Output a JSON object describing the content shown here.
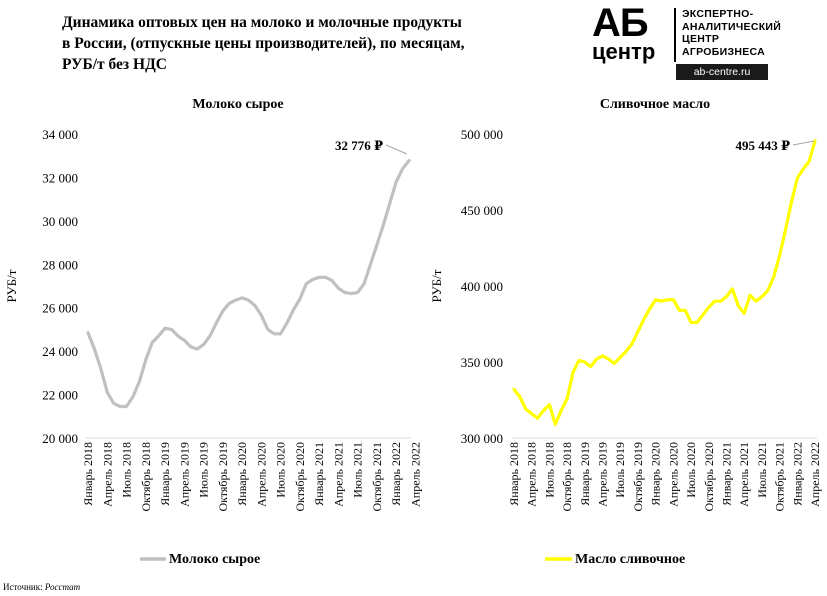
{
  "header": {
    "title_line1": "Динамика оптовых цен на молоко и молочные продукты",
    "title_line2": "в России, (отпускные цены производителей), по месяцам,",
    "title_line3": "РУБ/т без НДС"
  },
  "logo": {
    "ab": "АБ",
    "centr": "центр",
    "line1": "ЭКСПЕРТНО-",
    "line2": "АНАЛИТИЧЕСКИЙ",
    "line3": "ЦЕНТР",
    "line4": "АГРОБИЗНЕСА",
    "site": "ab-centre.ru"
  },
  "source": {
    "label": "Источник:",
    "value": "Росстат"
  },
  "colors": {
    "milk": "#c0c0c0",
    "butter": "#ffff00",
    "axis": "#d9d9d9"
  },
  "chart_data": [
    {
      "type": "line",
      "title": "Молоко сырое",
      "ylabel": "РУБ/т",
      "ylim": [
        20000,
        34000
      ],
      "yticks": [
        "20 000",
        "22 000",
        "24 000",
        "26 000",
        "28 000",
        "30 000",
        "32 000",
        "34 000"
      ],
      "xtick_labels": [
        "Январь 2018",
        "Апрель 2018",
        "Июль 2018",
        "Октябрь 2018",
        "Январь 2019",
        "Апрель 2019",
        "Июль 2019",
        "Октябрь 2019",
        "Январь 2020",
        "Апрель 2020",
        "Июль 2020",
        "Октябрь 2020",
        "Январь 2021",
        "Апрель 2021",
        "Июль 2021",
        "Октябрь 2021",
        "Январь 2022",
        "Апрель 2022"
      ],
      "legend": "bottom",
      "end_label": "32 776 ₽",
      "series": [
        {
          "name": "Молоко сырое",
          "values": [
            24850,
            24100,
            23200,
            22100,
            21600,
            21450,
            21450,
            21900,
            22600,
            23600,
            24400,
            24700,
            25050,
            25000,
            24700,
            24500,
            24200,
            24100,
            24300,
            24700,
            25300,
            25850,
            26200,
            26350,
            26450,
            26350,
            26100,
            25650,
            25000,
            24800,
            24800,
            25300,
            25900,
            26400,
            27100,
            27300,
            27400,
            27400,
            27250,
            26900,
            26700,
            26650,
            26700,
            27100,
            28000,
            28900,
            29800,
            30800,
            31800,
            32400,
            32776
          ]
        }
      ]
    },
    {
      "type": "line",
      "title": "Сливочное масло",
      "ylabel": "РУБ/т",
      "ylim": [
        300000,
        500000
      ],
      "yticks": [
        "300 000",
        "350 000",
        "400 000",
        "450 000",
        "500 000"
      ],
      "xtick_labels": [
        "Январь 2018",
        "Апрель 2018",
        "Июль 2018",
        "Октябрь 2018",
        "Январь 2019",
        "Апрель 2019",
        "Июль 2019",
        "Октябрь 2019",
        "Январь 2020",
        "Апрель 2020",
        "Июль 2020",
        "Октябрь 2020",
        "Январь 2021",
        "Апрель 2021",
        "Июль 2021",
        "Октябрь 2021",
        "Январь 2022",
        "Апрель 2022"
      ],
      "legend": "bottom",
      "end_label": "495 443 ₽",
      "series": [
        {
          "name": "Масло сливочное",
          "values": [
            332000,
            327000,
            319000,
            316000,
            313000,
            318000,
            322000,
            309000,
            318000,
            326000,
            343000,
            351000,
            350000,
            347000,
            352000,
            354000,
            352000,
            349000,
            353000,
            357000,
            362000,
            370000,
            378000,
            385000,
            391000,
            390000,
            391000,
            391000,
            384000,
            384000,
            376000,
            376000,
            381000,
            386000,
            390000,
            390000,
            393000,
            398000,
            387000,
            382000,
            394000,
            390000,
            393000,
            397000,
            406000,
            420000,
            437000,
            455000,
            471000,
            477000,
            482000,
            495443
          ]
        }
      ]
    }
  ]
}
